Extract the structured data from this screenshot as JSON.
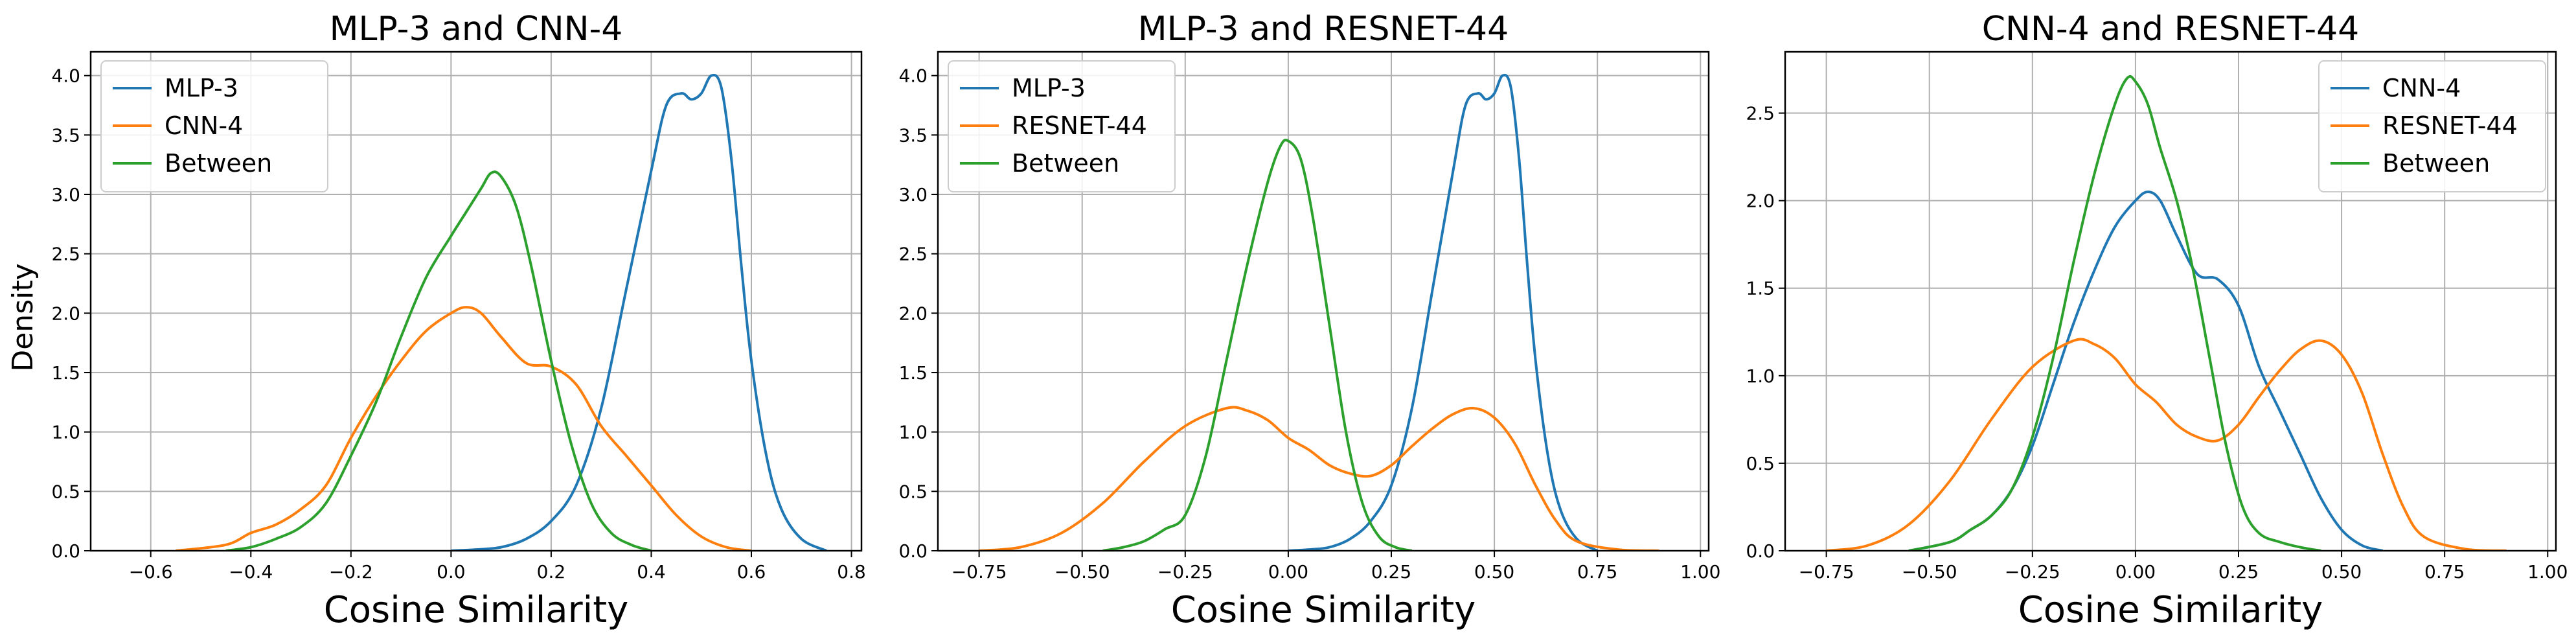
{
  "figure": {
    "ylabel_shared": "Density"
  },
  "chart_data": [
    {
      "type": "line",
      "title": "MLP-3 and CNN-4",
      "xlabel": "Cosine Similarity",
      "ylabel": "Density",
      "xlim": [
        -0.72,
        0.82
      ],
      "ylim": [
        0,
        4.2
      ],
      "xticks": [
        -0.6,
        -0.4,
        -0.2,
        0.0,
        0.2,
        0.4,
        0.6,
        0.8
      ],
      "xtick_labels": [
        "−0.6",
        "−0.4",
        "−0.2",
        "0.0",
        "0.2",
        "0.4",
        "0.6",
        "0.8"
      ],
      "yticks": [
        0.0,
        0.5,
        1.0,
        1.5,
        2.0,
        2.5,
        3.0,
        3.5,
        4.0
      ],
      "ytick_labels": [
        "0.0",
        "0.5",
        "1.0",
        "1.5",
        "2.0",
        "2.5",
        "3.0",
        "3.5",
        "4.0"
      ],
      "grid": true,
      "legend_position": "upper left",
      "series": [
        {
          "name": "MLP-3",
          "color": "#1f77b4",
          "points": [
            [
              0.0,
              0.0
            ],
            [
              0.05,
              0.01
            ],
            [
              0.1,
              0.03
            ],
            [
              0.15,
              0.1
            ],
            [
              0.2,
              0.25
            ],
            [
              0.25,
              0.55
            ],
            [
              0.3,
              1.2
            ],
            [
              0.35,
              2.2
            ],
            [
              0.4,
              3.2
            ],
            [
              0.43,
              3.75
            ],
            [
              0.46,
              3.85
            ],
            [
              0.48,
              3.8
            ],
            [
              0.5,
              3.85
            ],
            [
              0.52,
              4.0
            ],
            [
              0.54,
              3.9
            ],
            [
              0.56,
              3.3
            ],
            [
              0.58,
              2.4
            ],
            [
              0.6,
              1.6
            ],
            [
              0.63,
              0.8
            ],
            [
              0.66,
              0.35
            ],
            [
              0.7,
              0.1
            ],
            [
              0.75,
              0.0
            ]
          ]
        },
        {
          "name": "CNN-4",
          "color": "#ff7f0e",
          "points": [
            [
              -0.55,
              0.0
            ],
            [
              -0.45,
              0.05
            ],
            [
              -0.4,
              0.15
            ],
            [
              -0.35,
              0.22
            ],
            [
              -0.3,
              0.35
            ],
            [
              -0.25,
              0.55
            ],
            [
              -0.2,
              0.95
            ],
            [
              -0.15,
              1.3
            ],
            [
              -0.1,
              1.6
            ],
            [
              -0.05,
              1.85
            ],
            [
              0.0,
              2.0
            ],
            [
              0.03,
              2.05
            ],
            [
              0.06,
              2.0
            ],
            [
              0.1,
              1.8
            ],
            [
              0.15,
              1.58
            ],
            [
              0.2,
              1.55
            ],
            [
              0.25,
              1.4
            ],
            [
              0.3,
              1.05
            ],
            [
              0.35,
              0.8
            ],
            [
              0.4,
              0.55
            ],
            [
              0.45,
              0.3
            ],
            [
              0.5,
              0.12
            ],
            [
              0.55,
              0.03
            ],
            [
              0.6,
              0.0
            ]
          ]
        },
        {
          "name": "Between",
          "color": "#2ca02c",
          "points": [
            [
              -0.45,
              0.0
            ],
            [
              -0.4,
              0.03
            ],
            [
              -0.35,
              0.1
            ],
            [
              -0.3,
              0.2
            ],
            [
              -0.25,
              0.4
            ],
            [
              -0.2,
              0.8
            ],
            [
              -0.15,
              1.25
            ],
            [
              -0.1,
              1.8
            ],
            [
              -0.05,
              2.3
            ],
            [
              0.0,
              2.65
            ],
            [
              0.03,
              2.85
            ],
            [
              0.06,
              3.05
            ],
            [
              0.08,
              3.18
            ],
            [
              0.1,
              3.15
            ],
            [
              0.13,
              2.9
            ],
            [
              0.16,
              2.4
            ],
            [
              0.2,
              1.6
            ],
            [
              0.24,
              0.9
            ],
            [
              0.28,
              0.4
            ],
            [
              0.32,
              0.15
            ],
            [
              0.36,
              0.05
            ],
            [
              0.4,
              0.0
            ]
          ]
        }
      ]
    },
    {
      "type": "line",
      "title": "MLP-3 and RESNET-44",
      "xlabel": "Cosine Similarity",
      "ylabel": "",
      "xlim": [
        -0.85,
        1.02
      ],
      "ylim": [
        0,
        4.2
      ],
      "xticks": [
        -0.75,
        -0.5,
        -0.25,
        0.0,
        0.25,
        0.5,
        0.75,
        1.0
      ],
      "xtick_labels": [
        "−0.75",
        "−0.50",
        "−0.25",
        "0.00",
        "0.25",
        "0.50",
        "0.75",
        "1.00"
      ],
      "yticks": [
        0.0,
        0.5,
        1.0,
        1.5,
        2.0,
        2.5,
        3.0,
        3.5,
        4.0
      ],
      "ytick_labels": [
        "0.0",
        "0.5",
        "1.0",
        "1.5",
        "2.0",
        "2.5",
        "3.0",
        "3.5",
        "4.0"
      ],
      "grid": true,
      "legend_position": "upper left",
      "series": [
        {
          "name": "MLP-3",
          "color": "#1f77b4",
          "points": [
            [
              0.0,
              0.0
            ],
            [
              0.05,
              0.01
            ],
            [
              0.1,
              0.03
            ],
            [
              0.15,
              0.1
            ],
            [
              0.2,
              0.25
            ],
            [
              0.25,
              0.55
            ],
            [
              0.3,
              1.2
            ],
            [
              0.35,
              2.2
            ],
            [
              0.4,
              3.2
            ],
            [
              0.43,
              3.75
            ],
            [
              0.46,
              3.85
            ],
            [
              0.48,
              3.8
            ],
            [
              0.5,
              3.85
            ],
            [
              0.52,
              4.0
            ],
            [
              0.54,
              3.9
            ],
            [
              0.56,
              3.3
            ],
            [
              0.58,
              2.4
            ],
            [
              0.6,
              1.6
            ],
            [
              0.63,
              0.8
            ],
            [
              0.66,
              0.35
            ],
            [
              0.7,
              0.1
            ],
            [
              0.75,
              0.0
            ]
          ]
        },
        {
          "name": "RESNET-44",
          "color": "#ff7f0e",
          "points": [
            [
              -0.75,
              0.0
            ],
            [
              -0.65,
              0.03
            ],
            [
              -0.55,
              0.15
            ],
            [
              -0.45,
              0.4
            ],
            [
              -0.35,
              0.75
            ],
            [
              -0.25,
              1.05
            ],
            [
              -0.15,
              1.2
            ],
            [
              -0.1,
              1.18
            ],
            [
              -0.05,
              1.1
            ],
            [
              0.0,
              0.95
            ],
            [
              0.05,
              0.85
            ],
            [
              0.1,
              0.72
            ],
            [
              0.15,
              0.65
            ],
            [
              0.2,
              0.63
            ],
            [
              0.25,
              0.72
            ],
            [
              0.3,
              0.88
            ],
            [
              0.35,
              1.03
            ],
            [
              0.4,
              1.15
            ],
            [
              0.45,
              1.2
            ],
            [
              0.5,
              1.12
            ],
            [
              0.55,
              0.9
            ],
            [
              0.6,
              0.55
            ],
            [
              0.65,
              0.25
            ],
            [
              0.7,
              0.08
            ],
            [
              0.8,
              0.01
            ],
            [
              0.9,
              0.0
            ]
          ]
        },
        {
          "name": "Between",
          "color": "#2ca02c",
          "points": [
            [
              -0.45,
              0.0
            ],
            [
              -0.4,
              0.03
            ],
            [
              -0.35,
              0.08
            ],
            [
              -0.3,
              0.18
            ],
            [
              -0.25,
              0.3
            ],
            [
              -0.2,
              0.8
            ],
            [
              -0.15,
              1.6
            ],
            [
              -0.1,
              2.4
            ],
            [
              -0.05,
              3.1
            ],
            [
              -0.02,
              3.4
            ],
            [
              0.0,
              3.45
            ],
            [
              0.03,
              3.3
            ],
            [
              0.06,
              2.8
            ],
            [
              0.1,
              1.9
            ],
            [
              0.14,
              1.0
            ],
            [
              0.18,
              0.4
            ],
            [
              0.22,
              0.12
            ],
            [
              0.26,
              0.03
            ],
            [
              0.3,
              0.0
            ]
          ]
        }
      ]
    },
    {
      "type": "line",
      "title": "CNN-4 and RESNET-44",
      "xlabel": "Cosine Similarity",
      "ylabel": "",
      "xlim": [
        -0.85,
        1.02
      ],
      "ylim": [
        0,
        2.85
      ],
      "xticks": [
        -0.75,
        -0.5,
        -0.25,
        0.0,
        0.25,
        0.5,
        0.75,
        1.0
      ],
      "xtick_labels": [
        "−0.75",
        "−0.50",
        "−0.25",
        "0.00",
        "0.25",
        "0.50",
        "0.75",
        "1.00"
      ],
      "yticks": [
        0.0,
        0.5,
        1.0,
        1.5,
        2.0,
        2.5
      ],
      "ytick_labels": [
        "0.0",
        "0.5",
        "1.0",
        "1.5",
        "2.0",
        "2.5"
      ],
      "grid": true,
      "legend_position": "upper right",
      "series": [
        {
          "name": "CNN-4",
          "color": "#1f77b4",
          "points": [
            [
              -0.55,
              0.0
            ],
            [
              -0.45,
              0.05
            ],
            [
              -0.4,
              0.12
            ],
            [
              -0.35,
              0.2
            ],
            [
              -0.3,
              0.35
            ],
            [
              -0.25,
              0.6
            ],
            [
              -0.2,
              0.95
            ],
            [
              -0.15,
              1.3
            ],
            [
              -0.1,
              1.6
            ],
            [
              -0.05,
              1.85
            ],
            [
              0.0,
              2.0
            ],
            [
              0.03,
              2.05
            ],
            [
              0.06,
              2.0
            ],
            [
              0.1,
              1.8
            ],
            [
              0.15,
              1.58
            ],
            [
              0.2,
              1.55
            ],
            [
              0.25,
              1.4
            ],
            [
              0.3,
              1.05
            ],
            [
              0.35,
              0.8
            ],
            [
              0.4,
              0.55
            ],
            [
              0.45,
              0.3
            ],
            [
              0.5,
              0.12
            ],
            [
              0.55,
              0.03
            ],
            [
              0.6,
              0.0
            ]
          ]
        },
        {
          "name": "RESNET-44",
          "color": "#ff7f0e",
          "points": [
            [
              -0.75,
              0.0
            ],
            [
              -0.65,
              0.03
            ],
            [
              -0.55,
              0.15
            ],
            [
              -0.45,
              0.4
            ],
            [
              -0.35,
              0.75
            ],
            [
              -0.25,
              1.05
            ],
            [
              -0.15,
              1.2
            ],
            [
              -0.1,
              1.18
            ],
            [
              -0.05,
              1.1
            ],
            [
              0.0,
              0.95
            ],
            [
              0.05,
              0.85
            ],
            [
              0.1,
              0.72
            ],
            [
              0.15,
              0.65
            ],
            [
              0.2,
              0.63
            ],
            [
              0.25,
              0.72
            ],
            [
              0.3,
              0.88
            ],
            [
              0.35,
              1.03
            ],
            [
              0.4,
              1.15
            ],
            [
              0.45,
              1.2
            ],
            [
              0.5,
              1.12
            ],
            [
              0.55,
              0.9
            ],
            [
              0.6,
              0.55
            ],
            [
              0.65,
              0.25
            ],
            [
              0.7,
              0.08
            ],
            [
              0.8,
              0.01
            ],
            [
              0.9,
              0.0
            ]
          ]
        },
        {
          "name": "Between",
          "color": "#2ca02c",
          "points": [
            [
              -0.55,
              0.0
            ],
            [
              -0.45,
              0.05
            ],
            [
              -0.4,
              0.12
            ],
            [
              -0.35,
              0.2
            ],
            [
              -0.3,
              0.35
            ],
            [
              -0.25,
              0.65
            ],
            [
              -0.2,
              1.1
            ],
            [
              -0.15,
              1.65
            ],
            [
              -0.1,
              2.15
            ],
            [
              -0.05,
              2.55
            ],
            [
              -0.02,
              2.7
            ],
            [
              0.0,
              2.68
            ],
            [
              0.03,
              2.55
            ],
            [
              0.06,
              2.3
            ],
            [
              0.1,
              2.0
            ],
            [
              0.14,
              1.6
            ],
            [
              0.18,
              1.1
            ],
            [
              0.22,
              0.6
            ],
            [
              0.26,
              0.25
            ],
            [
              0.3,
              0.1
            ],
            [
              0.35,
              0.05
            ],
            [
              0.4,
              0.02
            ],
            [
              0.45,
              0.0
            ]
          ]
        }
      ]
    }
  ]
}
